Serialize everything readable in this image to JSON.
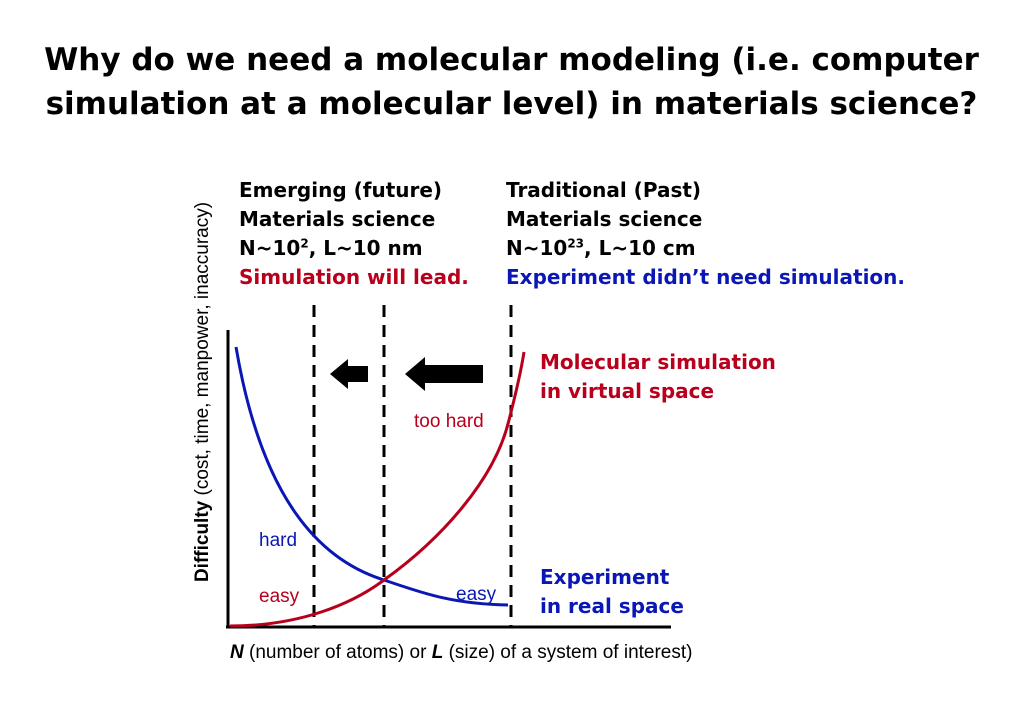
{
  "title": {
    "line1": "Why do we need a molecular modeling (i.e. computer",
    "line2": "simulation at a molecular level) in materials science?"
  },
  "emerging": {
    "heading": "Emerging (future)",
    "subheading": "Materials science",
    "n_prefix": "N~10",
    "n_exp": "2",
    "l_text": ", L~10 nm",
    "note": "Simulation will lead."
  },
  "traditional": {
    "heading": "Traditional (Past)",
    "subheading": "Materials science",
    "n_prefix": "N~10",
    "n_exp": "23",
    "l_text": ", L~10 cm",
    "note": "Experiment didn’t need simulation."
  },
  "axes": {
    "ylabel_bold": "Difficulty",
    "ylabel_rest": " (cost, time, manpower, inaccuracy)",
    "xlabel_n": "N",
    "xlabel_mid": " (number of atoms) or ",
    "xlabel_l": "L",
    "xlabel_rest": " (size) of a system of interest)"
  },
  "curves": {
    "simulation": {
      "line1": "Molecular simulation",
      "line2": "in virtual space",
      "color": "#b8001c"
    },
    "experiment": {
      "line1": "Experiment",
      "line2": "in real space",
      "color": "#0a17b4"
    }
  },
  "region_labels": {
    "too_hard": "too hard",
    "hard": "hard",
    "easy_left": "easy",
    "easy_right": "easy"
  },
  "icons": [
    "arrow-left-icon",
    "arrow-left-icon"
  ]
}
